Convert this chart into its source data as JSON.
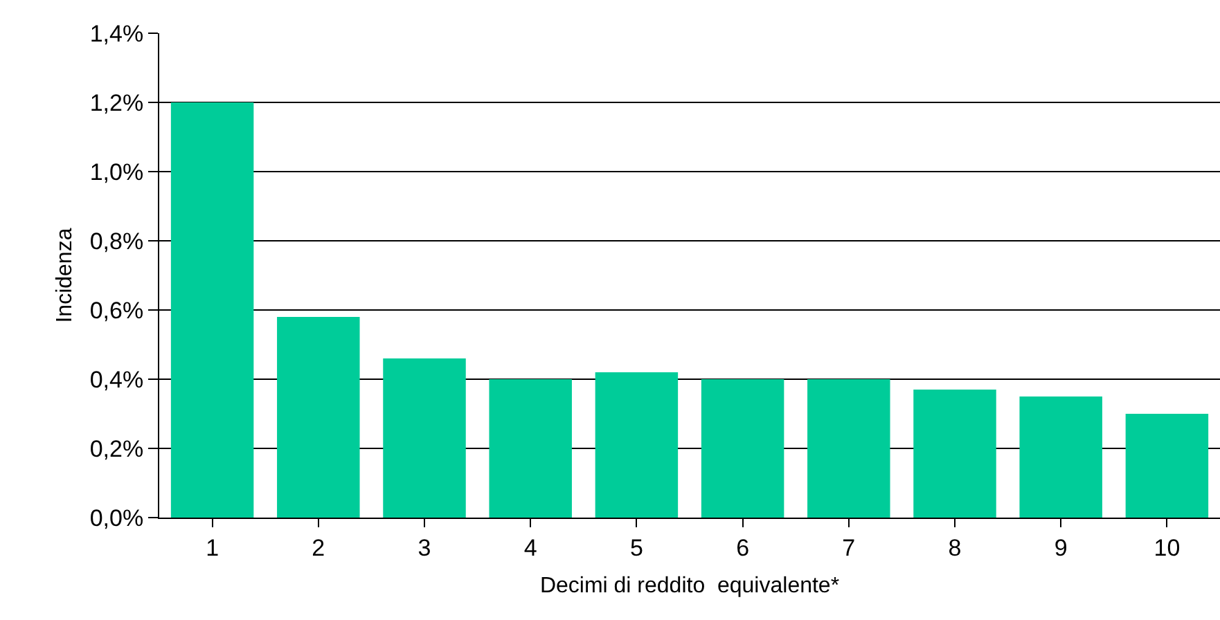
{
  "chart_data": {
    "type": "bar",
    "xlabel": "Decimi di reddito  equivalente*",
    "ylabel": "Incidenza",
    "categories": [
      "1",
      "2",
      "3",
      "4",
      "5",
      "6",
      "7",
      "8",
      "9",
      "10"
    ],
    "series": [
      {
        "color": "#00cc99",
        "values": [
          1.2,
          0.58,
          0.46,
          0.4,
          0.42,
          0.4,
          0.4,
          0.37,
          0.35,
          0.3
        ]
      }
    ],
    "ylim": [
      0,
      1.4
    ],
    "yticks": [
      {
        "value": 0,
        "label": "0,0%"
      },
      {
        "value": 0.2,
        "label": "0,2%"
      },
      {
        "value": 0.4,
        "label": "0,4%"
      },
      {
        "value": 0.6,
        "label": "0,6%"
      },
      {
        "value": 0.8,
        "label": "0,8%"
      },
      {
        "value": 1.0,
        "label": "1,0%"
      },
      {
        "value": 1.2,
        "label": "1,2%"
      },
      {
        "value": 1.4,
        "label": "1,4%"
      }
    ],
    "grid": "y",
    "legend": false
  }
}
